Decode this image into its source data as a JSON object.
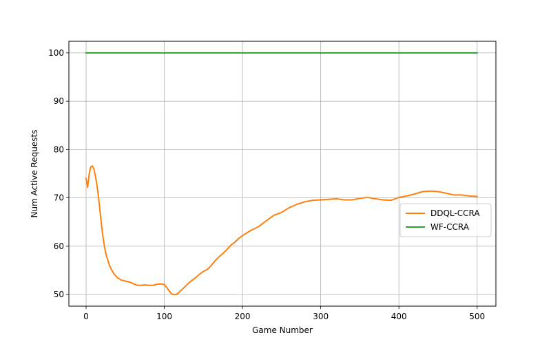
{
  "chart_data": {
    "type": "line",
    "xlabel": "Game Number",
    "ylabel": "Num Active Requests",
    "xlim": [
      -22,
      524
    ],
    "ylim": [
      47.6,
      102.4
    ],
    "x_ticks": [
      0,
      100,
      200,
      300,
      400,
      500
    ],
    "y_ticks": [
      50,
      60,
      70,
      80,
      90,
      100
    ],
    "grid": true,
    "legend_position": "center-right",
    "series": [
      {
        "name": "DDQL-CCRA",
        "color": "#ff7f0e",
        "x": [
          0,
          2,
          4,
          6,
          8,
          10,
          12,
          14,
          16,
          18,
          20,
          22,
          24,
          26,
          28,
          30,
          33,
          36,
          40,
          45,
          50,
          55,
          60,
          65,
          70,
          75,
          80,
          85,
          90,
          95,
          100,
          103,
          106,
          109,
          112,
          115,
          118,
          121,
          125,
          130,
          135,
          140,
          145,
          150,
          155,
          160,
          165,
          170,
          175,
          180,
          185,
          190,
          195,
          200,
          210,
          220,
          230,
          240,
          250,
          260,
          270,
          280,
          290,
          300,
          310,
          320,
          330,
          340,
          350,
          360,
          370,
          380,
          390,
          400,
          410,
          420,
          430,
          440,
          450,
          460,
          470,
          480,
          490,
          500
        ],
        "values": [
          74.0,
          72.2,
          75.0,
          76.4,
          76.6,
          76.0,
          74.5,
          72.5,
          70.0,
          67.0,
          64.0,
          61.5,
          59.5,
          58.0,
          57.0,
          56.0,
          55.0,
          54.2,
          53.5,
          53.0,
          52.8,
          52.6,
          52.3,
          51.9,
          51.9,
          52.0,
          51.9,
          51.9,
          52.1,
          52.2,
          52.1,
          51.5,
          50.8,
          50.2,
          50.0,
          50.0,
          50.3,
          50.8,
          51.4,
          52.2,
          52.9,
          53.5,
          54.2,
          54.8,
          55.2,
          56.0,
          57.0,
          57.8,
          58.5,
          59.3,
          60.2,
          60.8,
          61.6,
          62.2,
          63.2,
          64.0,
          65.2,
          66.4,
          67.0,
          68.0,
          68.7,
          69.2,
          69.5,
          69.6,
          69.7,
          69.8,
          69.6,
          69.6,
          69.9,
          70.1,
          69.8,
          69.6,
          69.5,
          70.1,
          70.4,
          70.8,
          71.3,
          71.4,
          71.3,
          71.0,
          70.6,
          70.6,
          70.4,
          70.3
        ]
      },
      {
        "name": "WF-CCRA",
        "color": "#2ca02c",
        "x": [
          0,
          500
        ],
        "values": [
          100,
          100
        ]
      }
    ]
  }
}
